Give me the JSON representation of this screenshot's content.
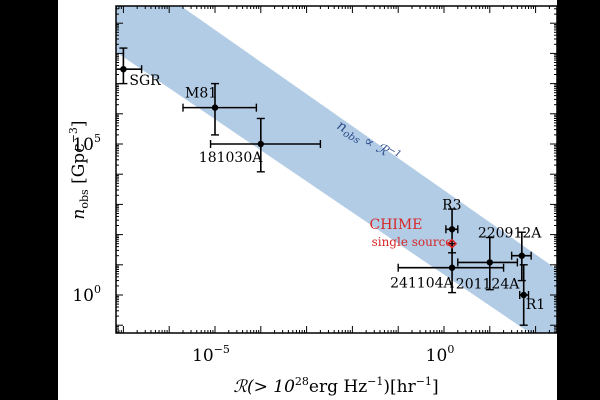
{
  "chart_data": {
    "type": "scatter",
    "x_scale": "log",
    "y_scale": "log",
    "x_ticks": [
      {
        "value": 1e-05,
        "label": "10",
        "exp": "−5"
      },
      {
        "value": 1,
        "label": "10",
        "exp": "0"
      }
    ],
    "y_ticks": [
      {
        "value": 100000.0,
        "label": "10",
        "exp": "5"
      },
      {
        "value": 1,
        "label": "10",
        "exp": "0"
      }
    ],
    "xlabel": {
      "main": "ℛ(> 10",
      "exp1": "28",
      "unit": "erg Hz",
      "exp2": "−1",
      "tail": ")[hr",
      "exp3": "−1",
      "close": "]"
    },
    "ylabel": {
      "sym": "n",
      "sub": "obs",
      "unit": " [Gpc",
      "exp": "−3",
      "close": "]"
    },
    "band_label": "n_obs ∝ ℛ^−1",
    "band_label_parts": {
      "n": "n",
      "sub": "obs",
      "prop": " ∝ ℛ",
      "exp": "−1"
    },
    "band_color": "#aac7e3",
    "point_color": "#000000",
    "highlight_color": "#d62728",
    "points": [
      {
        "label": "SGR",
        "x": 1e-07,
        "y": 30000000.0,
        "x_err": [
          4e-08,
          2.5e-07
        ],
        "y_err": [
          10000000.0,
          150000000.0
        ]
      },
      {
        "label": "M81",
        "x": 1e-05,
        "y": 1600000.0,
        "x_err": [
          2e-06,
          8e-05
        ],
        "y_err": [
          200000.0,
          10000000.0
        ]
      },
      {
        "label": "181030A",
        "x": 0.0001,
        "y": 100000.0,
        "x_err": [
          8e-06,
          0.002
        ],
        "y_err": [
          12000.0,
          700000.0
        ]
      },
      {
        "label": "R3",
        "x": 1.5,
        "y": 150,
        "x_err": [
          1.1,
          2.0
        ],
        "y_err": [
          25,
          700
        ]
      },
      {
        "label": "220912A",
        "x": 50,
        "y": 20,
        "x_err": [
          30,
          80
        ],
        "y_err": [
          3,
          120
        ]
      },
      {
        "label": "201124A",
        "x": 10,
        "y": 12,
        "x_err": [
          2,
          40
        ],
        "y_err": [
          1.5,
          80
        ]
      },
      {
        "label": "241104A",
        "x": 1.5,
        "y": 8,
        "x_err": [
          0.1,
          20
        ],
        "y_err": [
          1.2,
          50
        ]
      },
      {
        "label": "R1",
        "x": 55,
        "y": 1,
        "x_err": [
          45,
          70
        ],
        "y_err": [
          0.1,
          10
        ]
      }
    ],
    "highlight": {
      "label_line1": "CHIME",
      "label_line2": "single source",
      "x": 1.5,
      "y": 50
    }
  }
}
